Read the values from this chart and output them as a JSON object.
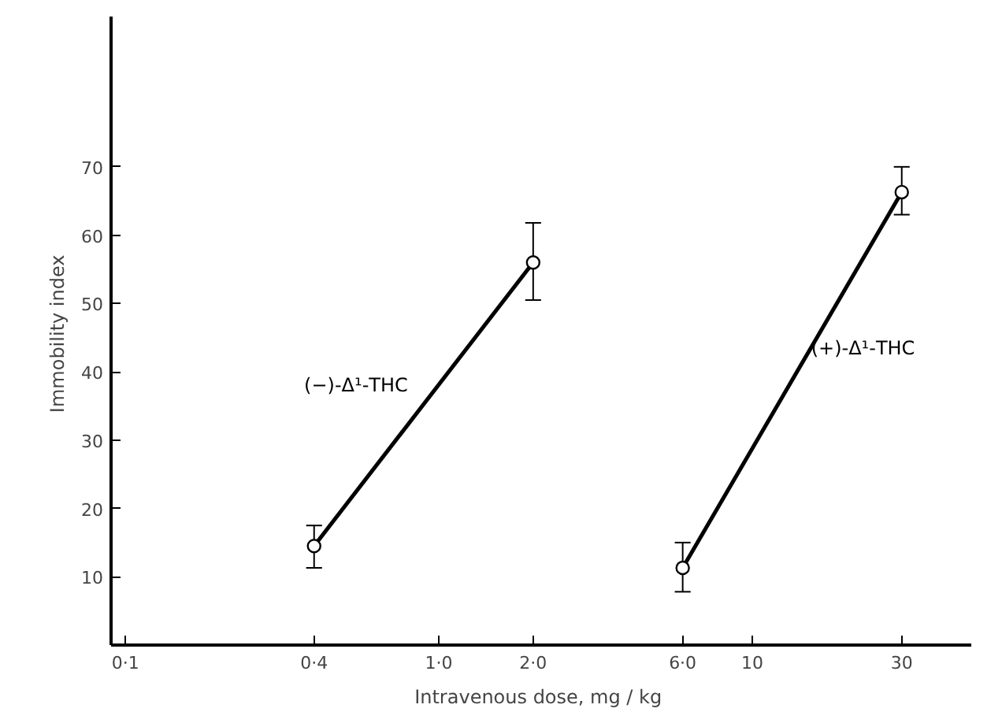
{
  "chart_data": {
    "type": "line",
    "xlabel": "Intravenous dose,  mg / kg",
    "ylabel": "Immobility  index",
    "log": "x",
    "xlim": [
      0.09,
      50
    ],
    "ylim": [
      0,
      92
    ],
    "xticks": [
      {
        "value": 0.1,
        "label": "0·1"
      },
      {
        "value": 0.4,
        "label": "0·4"
      },
      {
        "value": 1.0,
        "label": "1·0"
      },
      {
        "value": 2.0,
        "label": "2·0"
      },
      {
        "value": 6.0,
        "label": "6·0"
      },
      {
        "value": 10,
        "label": "10"
      },
      {
        "value": 30,
        "label": "30"
      }
    ],
    "yticks": [
      10,
      20,
      30,
      40,
      50,
      60,
      70
    ],
    "grid": false,
    "marker": "circle",
    "line_style": "solid",
    "series": [
      {
        "name": "(−)-Δ¹-THC",
        "color": "#000000",
        "x": [
          0.4,
          2.0
        ],
        "values": [
          14.5,
          56
        ],
        "errors": [
          [
            11.3,
            17.5
          ],
          [
            50.5,
            61.8
          ]
        ]
      },
      {
        "name": "(+)-Δ¹-THC",
        "color": "#000000",
        "x": [
          6.0,
          30
        ],
        "values": [
          11.3,
          66.3
        ],
        "errors": [
          [
            7.8,
            15
          ],
          [
            63,
            70
          ]
        ]
      }
    ]
  }
}
